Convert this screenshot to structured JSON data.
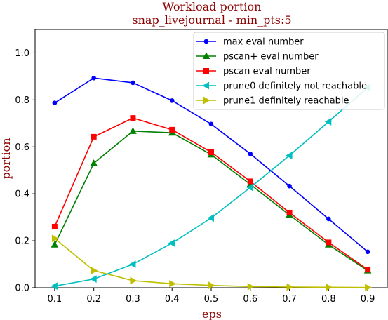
{
  "chart_data": {
    "type": "line",
    "title": "Workload portion",
    "subtitle": "snap_livejournal - min_pts:5",
    "xlabel": "eps",
    "ylabel": "portion",
    "xlim": [
      0.05,
      0.95
    ],
    "ylim": [
      0.0,
      1.1
    ],
    "x_ticks": [
      "0.1",
      "0.2",
      "0.3",
      "0.4",
      "0.5",
      "0.6",
      "0.7",
      "0.8",
      "0.9"
    ],
    "y_ticks": [
      "0.0",
      "0.2",
      "0.4",
      "0.6",
      "0.8",
      "1.0"
    ],
    "grid": false,
    "legend_position": "top-right",
    "x": [
      0.1,
      0.2,
      0.3,
      0.4,
      0.5,
      0.6,
      0.7,
      0.8,
      0.9
    ],
    "series": [
      {
        "name": "max eval number",
        "color": "#0000ff",
        "marker": "circle",
        "values": [
          0.787,
          0.893,
          0.873,
          0.797,
          0.697,
          0.57,
          0.433,
          0.293,
          0.153
        ]
      },
      {
        "name": "pscan+ eval number",
        "color": "#008000",
        "marker": "triangle-up",
        "values": [
          0.183,
          0.53,
          0.667,
          0.66,
          0.567,
          0.44,
          0.31,
          0.183,
          0.073
        ]
      },
      {
        "name": "pscan eval number",
        "color": "#ff0000",
        "marker": "square",
        "values": [
          0.26,
          0.643,
          0.723,
          0.673,
          0.577,
          0.453,
          0.32,
          0.193,
          0.077
        ]
      },
      {
        "name": "prune0 definitely not reachable",
        "color": "#00bfbf",
        "marker": "triangle-left",
        "values": [
          0.007,
          0.037,
          0.1,
          0.19,
          0.297,
          0.427,
          0.563,
          0.707,
          0.853
        ]
      },
      {
        "name": "prune1 definitely reachable",
        "color": "#bfbf00",
        "marker": "triangle-right",
        "values": [
          0.21,
          0.073,
          0.03,
          0.017,
          0.01,
          0.005,
          0.003,
          0.002,
          0.001
        ]
      }
    ]
  }
}
